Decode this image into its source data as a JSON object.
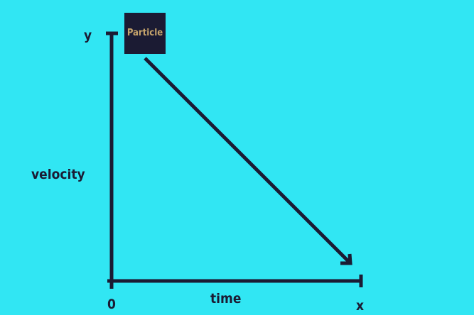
{
  "colors": {
    "background": "#31e6f3",
    "ink": "#1b1b33",
    "particle_box": "#1b1b33",
    "particle_text": "#c6a46c"
  },
  "axes": {
    "y_end_label": "y",
    "y_label": "velocity",
    "origin_label": "0",
    "x_label": "time",
    "x_end_label": "x"
  },
  "particle": {
    "label": "Particle"
  },
  "arrow": {
    "head": "arrowhead-corner"
  }
}
